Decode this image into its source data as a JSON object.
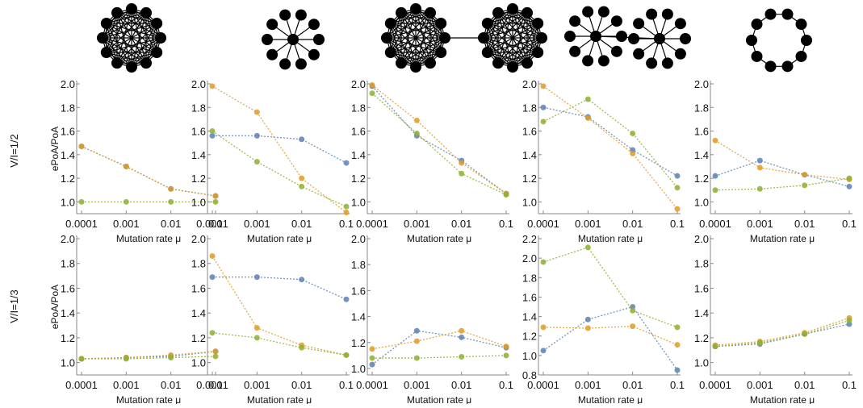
{
  "row_labels": [
    "V/I=1/2",
    "V/I=1/3"
  ],
  "chart_data": [
    {
      "type": "line",
      "ylabel": "ePoA/PoA",
      "xlabel": "Mutation rate μ",
      "categories": [
        "0.0001",
        "0.001",
        "0.01",
        "0.1"
      ],
      "ylim": [
        0.9,
        2.0
      ],
      "yticks": [
        {
          "value": 1,
          "label": "1.0"
        },
        {
          "value": 1.2,
          "label": "1.2"
        },
        {
          "value": 1.4,
          "label": "1.4"
        },
        {
          "value": 1.6,
          "label": "1.6"
        },
        {
          "value": 1.8,
          "label": "1.8"
        },
        {
          "value": 2,
          "label": "2.0"
        }
      ],
      "series": [
        {
          "color": "#5e81b5",
          "values": [
            1.47,
            1.3,
            1.11,
            1.05
          ]
        },
        {
          "color": "#e19c24",
          "values": [
            1.47,
            1.3,
            1.11,
            1.05
          ]
        },
        {
          "color": "#8fb032",
          "values": [
            1.0,
            1.0,
            1.0,
            1.0
          ]
        }
      ]
    },
    {
      "type": "line",
      "xlabel": "Mutation rate μ",
      "categories": [
        "0.0001",
        "0.001",
        "0.01",
        "0.1"
      ],
      "ylim": [
        0.9,
        2.0
      ],
      "yticks": [
        {
          "value": 1,
          "label": "1.0"
        },
        {
          "value": 1.2,
          "label": "1.2"
        },
        {
          "value": 1.4,
          "label": "1.4"
        },
        {
          "value": 1.6,
          "label": "1.6"
        },
        {
          "value": 1.8,
          "label": "1.8"
        },
        {
          "value": 2,
          "label": "2.0"
        }
      ],
      "series": [
        {
          "color": "#5e81b5",
          "values": [
            1.56,
            1.56,
            1.53,
            1.33
          ]
        },
        {
          "color": "#e19c24",
          "values": [
            1.98,
            1.76,
            1.2,
            0.91
          ]
        },
        {
          "color": "#8fb032",
          "values": [
            1.6,
            1.34,
            1.13,
            0.96
          ]
        }
      ]
    },
    {
      "type": "line",
      "xlabel": "Mutation rate μ",
      "categories": [
        "0.0001",
        "0.001",
        "0.01",
        "0.1"
      ],
      "ylim": [
        0.9,
        2.0
      ],
      "yticks": [
        {
          "value": 1,
          "label": "1.0"
        },
        {
          "value": 1.2,
          "label": "1.2"
        },
        {
          "value": 1.4,
          "label": "1.4"
        },
        {
          "value": 1.6,
          "label": "1.6"
        },
        {
          "value": 1.8,
          "label": "1.8"
        },
        {
          "value": 2,
          "label": "2.0"
        }
      ],
      "series": [
        {
          "color": "#5e81b5",
          "values": [
            1.98,
            1.56,
            1.35,
            1.07
          ]
        },
        {
          "color": "#e19c24",
          "values": [
            1.99,
            1.69,
            1.33,
            1.07
          ]
        },
        {
          "color": "#8fb032",
          "values": [
            1.92,
            1.58,
            1.24,
            1.06
          ]
        }
      ]
    },
    {
      "type": "line",
      "xlabel": "Mutation rate μ",
      "categories": [
        "0.0001",
        "0.001",
        "0.01",
        "0.1"
      ],
      "ylim": [
        0.9,
        2.0
      ],
      "yticks": [
        {
          "value": 1,
          "label": "1.0"
        },
        {
          "value": 1.2,
          "label": "1.2"
        },
        {
          "value": 1.4,
          "label": "1.4"
        },
        {
          "value": 1.6,
          "label": "1.6"
        },
        {
          "value": 1.8,
          "label": "1.8"
        },
        {
          "value": 2,
          "label": "2.0"
        }
      ],
      "series": [
        {
          "color": "#5e81b5",
          "values": [
            1.8,
            1.72,
            1.44,
            1.22
          ]
        },
        {
          "color": "#e19c24",
          "values": [
            1.98,
            1.71,
            1.41,
            0.94
          ]
        },
        {
          "color": "#8fb032",
          "values": [
            1.68,
            1.87,
            1.58,
            1.12
          ]
        }
      ]
    },
    {
      "type": "line",
      "xlabel": "Mutation rate μ",
      "categories": [
        "0.0001",
        "0.001",
        "0.01",
        "0.1"
      ],
      "ylim": [
        0.9,
        2.0
      ],
      "yticks": [
        {
          "value": 1,
          "label": "1.0"
        },
        {
          "value": 1.2,
          "label": "1.2"
        },
        {
          "value": 1.4,
          "label": "1.4"
        },
        {
          "value": 1.6,
          "label": "1.6"
        },
        {
          "value": 1.8,
          "label": "1.8"
        },
        {
          "value": 2,
          "label": "2.0"
        }
      ],
      "series": [
        {
          "color": "#5e81b5",
          "values": [
            1.22,
            1.35,
            1.23,
            1.13
          ]
        },
        {
          "color": "#e19c24",
          "values": [
            1.52,
            1.29,
            1.23,
            1.19
          ]
        },
        {
          "color": "#8fb032",
          "values": [
            1.1,
            1.11,
            1.14,
            1.2
          ]
        }
      ]
    },
    {
      "type": "line",
      "ylabel": "ePoA/PoA",
      "xlabel": "Mutation rate μ",
      "categories": [
        "0.0001",
        "0.001",
        "0.01",
        "0.1"
      ],
      "ylim": [
        0.9,
        2.0
      ],
      "yticks": [
        {
          "value": 1,
          "label": "1.0"
        },
        {
          "value": 1.2,
          "label": "1.2"
        },
        {
          "value": 1.4,
          "label": "1.4"
        },
        {
          "value": 1.6,
          "label": "1.6"
        },
        {
          "value": 1.8,
          "label": "1.8"
        },
        {
          "value": 2,
          "label": "2.0"
        }
      ],
      "series": [
        {
          "color": "#5e81b5",
          "values": [
            1.03,
            1.04,
            1.05,
            1.09
          ]
        },
        {
          "color": "#e19c24",
          "values": [
            1.03,
            1.04,
            1.06,
            1.09
          ]
        },
        {
          "color": "#8fb032",
          "values": [
            1.03,
            1.03,
            1.04,
            1.05
          ]
        }
      ]
    },
    {
      "type": "line",
      "xlabel": "Mutation rate μ",
      "categories": [
        "0.0001",
        "0.001",
        "0.01",
        "0.1"
      ],
      "ylim": [
        0.9,
        2.0
      ],
      "yticks": [
        {
          "value": 1,
          "label": "1.0"
        },
        {
          "value": 1.2,
          "label": "1.2"
        },
        {
          "value": 1.4,
          "label": "1.4"
        },
        {
          "value": 1.6,
          "label": "1.6"
        },
        {
          "value": 1.8,
          "label": "1.8"
        },
        {
          "value": 2,
          "label": "2.0"
        }
      ],
      "series": [
        {
          "color": "#5e81b5",
          "values": [
            1.69,
            1.69,
            1.67,
            1.51
          ]
        },
        {
          "color": "#e19c24",
          "values": [
            1.86,
            1.28,
            1.14,
            1.06
          ]
        },
        {
          "color": "#8fb032",
          "values": [
            1.24,
            1.2,
            1.12,
            1.06
          ]
        }
      ]
    },
    {
      "type": "line",
      "xlabel": "Mutation rate μ",
      "categories": [
        "0.0001",
        "0.001",
        "0.01",
        "0.1"
      ],
      "ylim": [
        0.95,
        2.0
      ],
      "yticks": [
        {
          "value": 1,
          "label": "1.0"
        },
        {
          "value": 1.2,
          "label": "1.2"
        },
        {
          "value": 1.4,
          "label": "1.4"
        },
        {
          "value": 1.6,
          "label": "1.6"
        },
        {
          "value": 1.8,
          "label": "1.8"
        },
        {
          "value": 2,
          "label": "2.0"
        }
      ],
      "series": [
        {
          "color": "#5e81b5",
          "values": [
            1.03,
            1.29,
            1.24,
            1.16
          ]
        },
        {
          "color": "#e19c24",
          "values": [
            1.15,
            1.21,
            1.29,
            1.17
          ]
        },
        {
          "color": "#8fb032",
          "values": [
            1.08,
            1.08,
            1.09,
            1.1
          ]
        }
      ]
    },
    {
      "type": "line",
      "xlabel": "Mutation rate μ",
      "categories": [
        "0.0001",
        "0.001",
        "0.01",
        "0.1"
      ],
      "ylim": [
        0.8,
        2.2
      ],
      "yticks": [
        {
          "value": 0.8,
          "label": "0.8"
        },
        {
          "value": 1,
          "label": "1.0"
        },
        {
          "value": 1.2,
          "label": "1.2"
        },
        {
          "value": 1.4,
          "label": "1.4"
        },
        {
          "value": 1.6,
          "label": "1.6"
        },
        {
          "value": 1.8,
          "label": "1.8"
        },
        {
          "value": 2,
          "label": "2.0"
        },
        {
          "value": 2.2,
          "label": "2.2"
        }
      ],
      "series": [
        {
          "color": "#5e81b5",
          "values": [
            1.05,
            1.37,
            1.5,
            0.85
          ]
        },
        {
          "color": "#e19c24",
          "values": [
            1.29,
            1.28,
            1.3,
            1.11
          ]
        },
        {
          "color": "#8fb032",
          "values": [
            1.96,
            2.11,
            1.46,
            1.29
          ]
        }
      ]
    },
    {
      "type": "line",
      "xlabel": "Mutation rate μ",
      "categories": [
        "0.0001",
        "0.001",
        "0.01",
        "0.1"
      ],
      "ylim": [
        0.9,
        2.0
      ],
      "yticks": [
        {
          "value": 1,
          "label": "1.0"
        },
        {
          "value": 1.2,
          "label": "1.2"
        },
        {
          "value": 1.4,
          "label": "1.4"
        },
        {
          "value": 1.6,
          "label": "1.6"
        },
        {
          "value": 1.8,
          "label": "1.8"
        },
        {
          "value": 2,
          "label": "2.0"
        }
      ],
      "series": [
        {
          "color": "#5e81b5",
          "values": [
            1.13,
            1.15,
            1.23,
            1.31
          ]
        },
        {
          "color": "#e19c24",
          "values": [
            1.14,
            1.17,
            1.24,
            1.36
          ]
        },
        {
          "color": "#8fb032",
          "values": [
            1.13,
            1.16,
            1.23,
            1.34
          ]
        }
      ]
    }
  ]
}
